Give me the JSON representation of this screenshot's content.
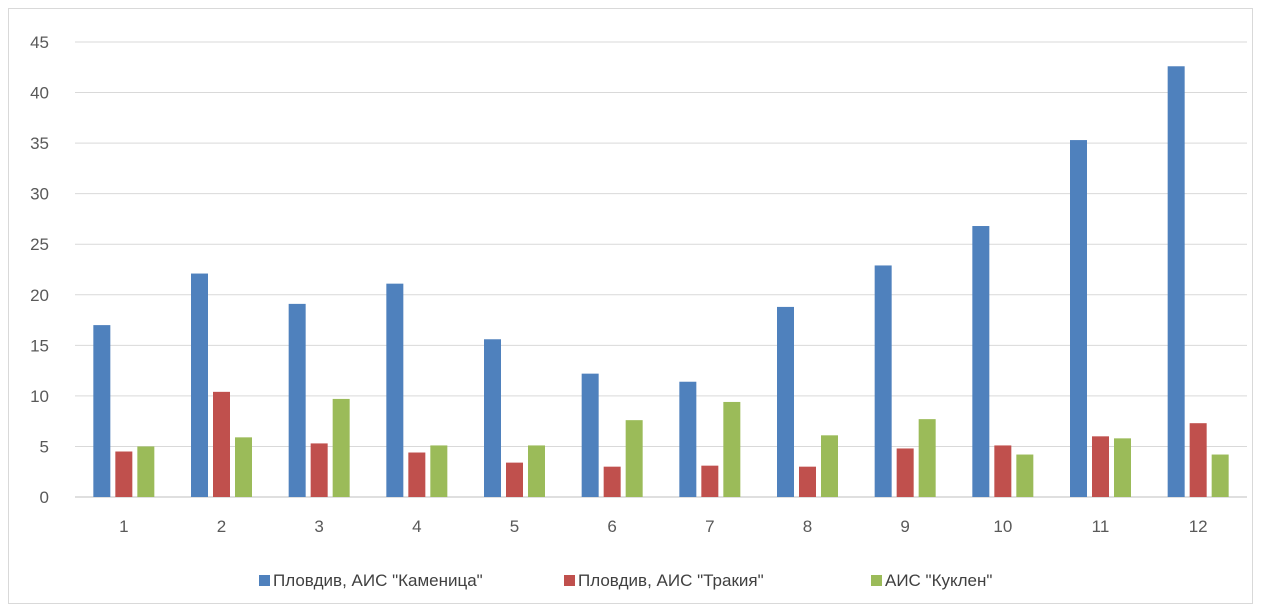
{
  "chart_data": {
    "type": "bar",
    "categories": [
      "1",
      "2",
      "3",
      "4",
      "5",
      "6",
      "7",
      "8",
      "9",
      "10",
      "11",
      "12"
    ],
    "series": [
      {
        "name": "Пловдив, АИС \"Каменица\"",
        "color": "#4f81bd",
        "values": [
          17.0,
          22.1,
          19.1,
          21.1,
          15.6,
          12.2,
          11.4,
          18.8,
          22.9,
          26.8,
          35.3,
          42.6
        ]
      },
      {
        "name": "Пловдив, АИС \"Тракия\"",
        "color": "#c0504d",
        "values": [
          4.5,
          10.4,
          5.3,
          4.4,
          3.4,
          3.0,
          3.1,
          3.0,
          4.8,
          5.1,
          6.0,
          7.3
        ]
      },
      {
        "name": "АИС \"Куклен\"",
        "color": "#9bbb59",
        "values": [
          5.0,
          5.9,
          9.7,
          5.1,
          5.1,
          7.6,
          9.4,
          6.1,
          7.7,
          4.2,
          5.8,
          4.2
        ]
      }
    ],
    "ylim": [
      0,
      45
    ],
    "yticks": [
      0,
      5,
      10,
      15,
      20,
      25,
      30,
      35,
      40,
      45
    ],
    "grid": true,
    "legend_position": "bottom",
    "title": "",
    "xlabel": "",
    "ylabel": ""
  }
}
